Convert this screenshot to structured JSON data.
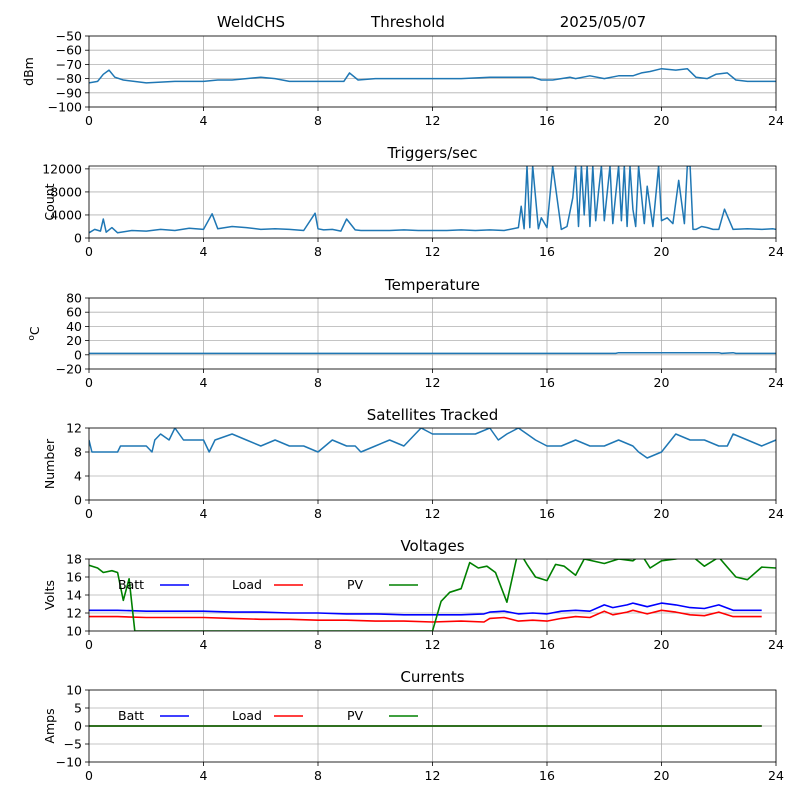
{
  "header": {
    "site": "WeldCHS",
    "mode": "Threshold",
    "date": "2025/05/07"
  },
  "colors": {
    "series": "#1f77b4",
    "grid": "#b0b0b0",
    "batt": "#0000ff",
    "load": "#ff0000",
    "pv": "#008000"
  },
  "chart_data": [
    {
      "type": "line",
      "title": "",
      "xlabel": "",
      "ylabel": "dBm",
      "xlim": [
        0,
        24
      ],
      "ylim": [
        -100,
        -50
      ],
      "xticks": [
        "0",
        "4",
        "8",
        "12",
        "16",
        "20",
        "24"
      ],
      "yticks": [
        "−50",
        "−60",
        "−70",
        "−80",
        "−90",
        "−100"
      ],
      "grid": true,
      "series": [
        {
          "x": [
            0,
            0.3,
            0.5,
            0.7,
            0.9,
            1.2,
            2,
            3,
            4,
            4.5,
            5,
            5.5,
            6,
            6.5,
            7,
            8,
            8.5,
            8.9,
            9.1,
            9.4,
            10,
            11,
            12,
            13,
            14,
            15,
            15.5,
            15.8,
            16.2,
            16.8,
            17,
            17.5,
            18,
            18.5,
            19,
            19.3,
            19.6,
            20,
            20.5,
            20.9,
            21.2,
            21.6,
            21.9,
            22.3,
            22.6,
            23,
            24
          ],
          "y": [
            -83,
            -82,
            -77,
            -74,
            -79,
            -81,
            -83,
            -82,
            -82,
            -81,
            -81,
            -80,
            -79,
            -80,
            -82,
            -82,
            -82,
            -82,
            -76,
            -81,
            -80,
            -80,
            -80,
            -80,
            -79,
            -79,
            -79,
            -81,
            -81,
            -79,
            -80,
            -78,
            -80,
            -78,
            -78,
            -76,
            -75,
            -73,
            -74,
            -73,
            -79,
            -80,
            -77,
            -76,
            -81,
            -82,
            -82
          ]
        }
      ]
    },
    {
      "type": "line",
      "title": "Triggers/sec",
      "xlabel": "",
      "ylabel": "Count",
      "xlim": [
        0,
        24
      ],
      "ylim": [
        0,
        12500
      ],
      "xticks": [
        "0",
        "4",
        "8",
        "12",
        "16",
        "20",
        "24"
      ],
      "yticks": [
        "0",
        "4000",
        "8000",
        "12000"
      ],
      "grid": true,
      "series": [
        {
          "x": [
            0,
            0.2,
            0.4,
            0.5,
            0.6,
            0.8,
            1,
            1.5,
            2,
            2.5,
            3,
            3.5,
            4,
            4.3,
            4.5,
            5,
            5.5,
            6,
            6.5,
            7,
            7.5,
            7.9,
            8,
            8.2,
            8.5,
            8.8,
            9,
            9.3,
            9.5,
            10,
            10.5,
            11,
            11.5,
            12,
            12.5,
            13,
            13.5,
            14,
            14.5,
            15,
            15.1,
            15.2,
            15.3,
            15.4,
            15.5,
            15.7,
            15.8,
            16,
            16.2,
            16.5,
            16.7,
            16.9,
            17,
            17.1,
            17.2,
            17.3,
            17.4,
            17.5,
            17.6,
            17.7,
            17.8,
            17.9,
            18,
            18.2,
            18.3,
            18.5,
            18.6,
            18.7,
            18.8,
            18.9,
            19,
            19.1,
            19.2,
            19.4,
            19.5,
            19.7,
            19.9,
            20,
            20.2,
            20.4,
            20.6,
            20.8,
            20.9,
            21,
            21.1,
            21.2,
            21.4,
            21.6,
            21.8,
            22,
            22.2,
            22.5,
            23,
            23.5,
            23.9,
            24
          ],
          "y": [
            900,
            1500,
            1200,
            3300,
            1000,
            1800,
            900,
            1300,
            1200,
            1500,
            1300,
            1700,
            1500,
            4200,
            1600,
            2000,
            1800,
            1500,
            1600,
            1500,
            1300,
            4300,
            1600,
            1400,
            1500,
            1200,
            3300,
            1400,
            1300,
            1300,
            1300,
            1400,
            1300,
            1300,
            1300,
            1400,
            1300,
            1400,
            1300,
            1800,
            5500,
            1600,
            12500,
            1800,
            12500,
            1600,
            3500,
            1800,
            12500,
            1500,
            2000,
            7000,
            12500,
            2000,
            12500,
            4000,
            12500,
            2000,
            12500,
            3000,
            8000,
            12500,
            3000,
            12500,
            2500,
            12500,
            3000,
            12500,
            2000,
            12500,
            5000,
            2000,
            12500,
            2500,
            9000,
            2000,
            12500,
            3000,
            3500,
            2500,
            10000,
            2500,
            12500,
            12500,
            1500,
            1500,
            2000,
            1800,
            1500,
            1500,
            5000,
            1500,
            1600,
            1500,
            1600,
            1500
          ]
        }
      ]
    },
    {
      "type": "line",
      "title": "Temperature",
      "xlabel": "",
      "ylabel": "°C",
      "ylabel_prefix": "o",
      "ylabel_unit": "C",
      "xlim": [
        0,
        24
      ],
      "ylim": [
        -20,
        80
      ],
      "xticks": [
        "0",
        "4",
        "8",
        "12",
        "16",
        "20",
        "24"
      ],
      "yticks": [
        "−20",
        "0",
        "20",
        "40",
        "60",
        "80"
      ],
      "grid": true,
      "series": [
        {
          "x": [
            0,
            4,
            8,
            12,
            16,
            18.4,
            18.5,
            20,
            22,
            22.1,
            22.5,
            22.6,
            24
          ],
          "y": [
            2,
            2,
            2,
            2,
            2,
            2,
            3,
            3,
            3,
            2,
            3,
            2,
            2
          ]
        }
      ]
    },
    {
      "type": "line",
      "title": "Satellites Tracked",
      "xlabel": "",
      "ylabel": "Number",
      "xlim": [
        0,
        24
      ],
      "ylim": [
        0,
        12
      ],
      "xticks": [
        "0",
        "4",
        "8",
        "12",
        "16",
        "20",
        "24"
      ],
      "yticks": [
        "0",
        "4",
        "8",
        "12"
      ],
      "grid": true,
      "series": [
        {
          "x": [
            0,
            0.1,
            0.2,
            1,
            1.1,
            2,
            2.2,
            2.3,
            2.5,
            2.8,
            3,
            3.3,
            4,
            4.2,
            4.4,
            5,
            5.5,
            6,
            6.5,
            7,
            7.5,
            8,
            8.5,
            9,
            9.3,
            9.5,
            10,
            10.5,
            11,
            11.4,
            11.6,
            12,
            12.5,
            13,
            13.5,
            14,
            14.3,
            14.6,
            15,
            15.3,
            15.6,
            16,
            16.5,
            17,
            17.5,
            18,
            18.5,
            19,
            19.2,
            19.5,
            20,
            20.5,
            21,
            21.5,
            22,
            22.3,
            22.5,
            23,
            23.5,
            24
          ],
          "y": [
            10,
            8,
            8,
            8,
            9,
            9,
            8,
            10,
            11,
            10,
            12,
            10,
            10,
            8,
            10,
            11,
            10,
            9,
            10,
            9,
            9,
            8,
            10,
            9,
            9,
            8,
            9,
            10,
            9,
            11,
            12,
            11,
            11,
            11,
            11,
            12,
            10,
            11,
            12,
            11,
            10,
            9,
            9,
            10,
            9,
            9,
            10,
            9,
            8,
            7,
            8,
            11,
            10,
            10,
            9,
            9,
            11,
            10,
            9,
            10
          ]
        }
      ]
    },
    {
      "type": "line",
      "title": "Voltages",
      "xlabel": "",
      "ylabel": "Volts",
      "xlim": [
        0,
        24
      ],
      "ylim": [
        10,
        18
      ],
      "xticks": [
        "0",
        "4",
        "8",
        "12",
        "16",
        "20",
        "24"
      ],
      "yticks": [
        "10",
        "12",
        "14",
        "16",
        "18"
      ],
      "grid": true,
      "legend": "inside-top",
      "series": [
        {
          "name": "Batt",
          "color": "#0000ff",
          "x": [
            0,
            1,
            2,
            3,
            4,
            5,
            6,
            7,
            8,
            9,
            10,
            11,
            12,
            13,
            13.8,
            14,
            14.5,
            15,
            15.5,
            16,
            16.5,
            17,
            17.5,
            18,
            18.3,
            18.8,
            19,
            19.5,
            20,
            20.5,
            21,
            21.5,
            22,
            22.5,
            23,
            23.5
          ],
          "y": [
            12.3,
            12.3,
            12.2,
            12.2,
            12.2,
            12.1,
            12.1,
            12.0,
            12.0,
            11.9,
            11.9,
            11.8,
            11.8,
            11.8,
            11.9,
            12.1,
            12.2,
            11.9,
            12.0,
            11.9,
            12.2,
            12.3,
            12.2,
            12.9,
            12.6,
            12.9,
            13.1,
            12.7,
            13.1,
            12.9,
            12.6,
            12.5,
            12.9,
            12.3,
            12.3,
            12.3
          ]
        },
        {
          "name": "Load",
          "color": "#ff0000",
          "x": [
            0,
            1,
            2,
            3,
            4,
            5,
            6,
            7,
            8,
            9,
            10,
            11,
            12,
            13,
            13.8,
            14,
            14.5,
            15,
            15.5,
            16,
            16.5,
            17,
            17.5,
            18,
            18.3,
            18.8,
            19,
            19.5,
            20,
            20.5,
            21,
            21.5,
            22,
            22.5,
            23,
            23.5
          ],
          "y": [
            11.6,
            11.6,
            11.5,
            11.5,
            11.5,
            11.4,
            11.3,
            11.3,
            11.2,
            11.2,
            11.1,
            11.1,
            11.0,
            11.1,
            11.0,
            11.4,
            11.5,
            11.1,
            11.2,
            11.1,
            11.4,
            11.6,
            11.5,
            12.2,
            11.8,
            12.1,
            12.3,
            11.9,
            12.3,
            12.1,
            11.8,
            11.7,
            12.1,
            11.6,
            11.6,
            11.6
          ]
        },
        {
          "name": "PV",
          "color": "#008000",
          "x": [
            0,
            0.3,
            0.5,
            0.8,
            1.0,
            1.2,
            1.4,
            1.6,
            12,
            12.3,
            12.6,
            13,
            13.3,
            13.6,
            13.9,
            14.2,
            14.6,
            15,
            15.3,
            15.6,
            16,
            16.3,
            16.6,
            17,
            17.3,
            18,
            18.5,
            19,
            19.3,
            19.6,
            20,
            20.5,
            21,
            21.5,
            22,
            22.3,
            22.6,
            23,
            23.5,
            24
          ],
          "y": [
            17.3,
            17.0,
            16.5,
            16.7,
            16.5,
            13.4,
            15.8,
            10,
            10,
            13.3,
            14.3,
            14.7,
            17.6,
            17.0,
            17.2,
            16.5,
            13.2,
            19,
            17.4,
            16.0,
            15.6,
            17.4,
            17.2,
            16.2,
            18,
            17.5,
            18,
            17.8,
            18.5,
            17.0,
            17.8,
            18,
            18.5,
            17.2,
            18.2,
            17.1,
            16.0,
            15.7,
            17.1,
            17.0
          ]
        }
      ]
    },
    {
      "type": "line",
      "title": "Currents",
      "xlabel": "",
      "ylabel": "Amps",
      "xlim": [
        0,
        24
      ],
      "ylim": [
        -10,
        10
      ],
      "xticks": [
        "0",
        "4",
        "8",
        "12",
        "16",
        "20",
        "24"
      ],
      "yticks": [
        "−10",
        "−5",
        "0",
        "5",
        "10"
      ],
      "grid": true,
      "legend": "inside-top",
      "series": [
        {
          "name": "Batt",
          "color": "#0000ff",
          "x": [
            0,
            23.5
          ],
          "y": [
            0,
            0
          ]
        },
        {
          "name": "Load",
          "color": "#ff0000",
          "x": [
            0,
            23.5
          ],
          "y": [
            0,
            0
          ]
        },
        {
          "name": "PV",
          "color": "#008000",
          "x": [
            0,
            23.5
          ],
          "y": [
            0,
            0
          ]
        }
      ]
    }
  ]
}
